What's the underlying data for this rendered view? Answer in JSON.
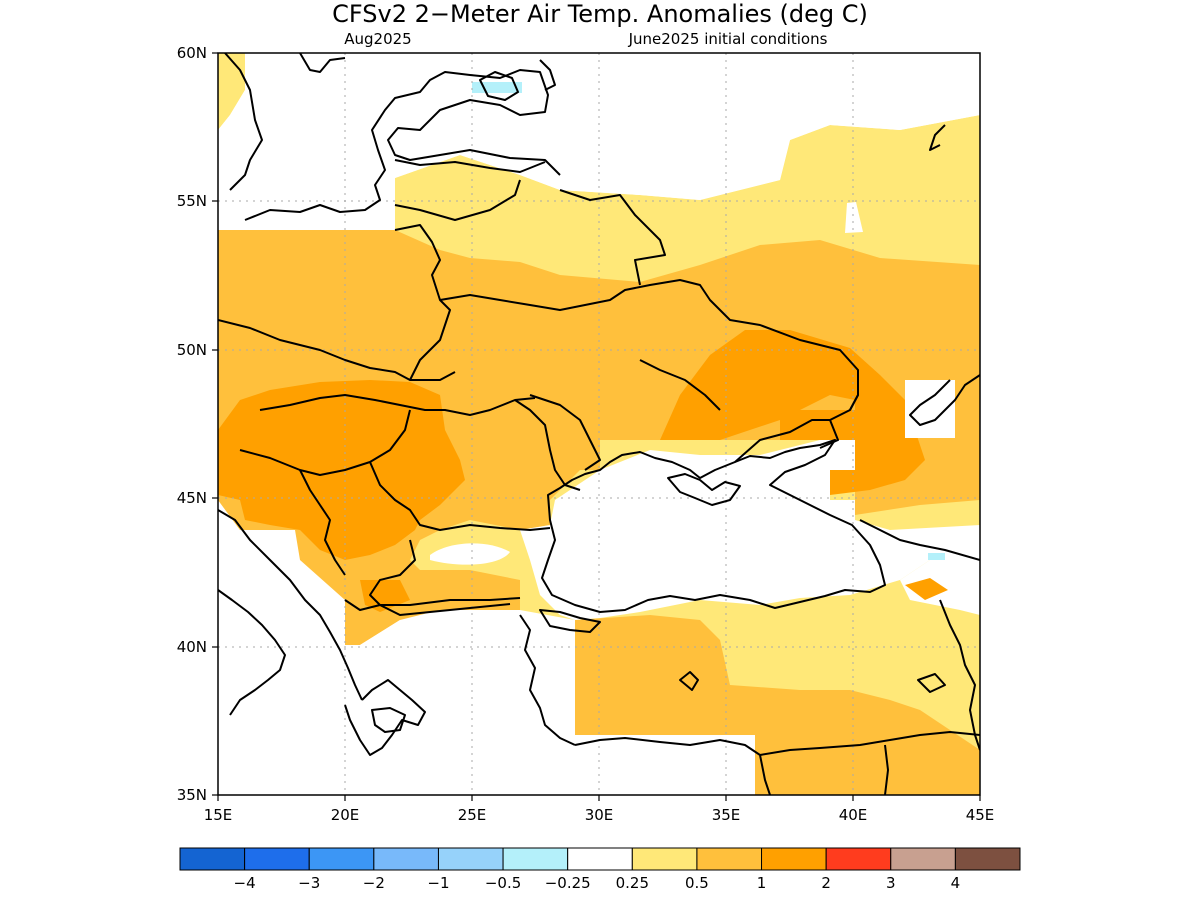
{
  "title": "CFSv2 2−Meter Air Temp. Anomalies (deg C)",
  "subtitle_left": "Aug2025",
  "subtitle_right": "June2025 initial conditions",
  "map": {
    "lon_range": [
      15,
      45
    ],
    "lat_range": [
      35,
      60
    ],
    "lon_ticks": [
      "15E",
      "20E",
      "25E",
      "30E",
      "35E",
      "40E",
      "45E"
    ],
    "lat_ticks": [
      "60N",
      "55N",
      "50N",
      "45N",
      "40N",
      "35N"
    ],
    "grid_lines": true
  },
  "colorbar": {
    "colors": [
      "#1464d2",
      "#1e6eeb",
      "#3c96f5",
      "#78b9fa",
      "#96d2fa",
      "#b4f0fa",
      "#ffffff",
      "#ffe878",
      "#ffc03c",
      "#ffa000",
      "#ff3c1e",
      "#c8a090",
      "#7d5040"
    ],
    "labels": [
      "−4",
      "−3",
      "−2",
      "−1",
      "−0.5",
      "−0.25",
      "0.25",
      "0.5",
      "1",
      "2",
      "3",
      "4"
    ]
  }
}
